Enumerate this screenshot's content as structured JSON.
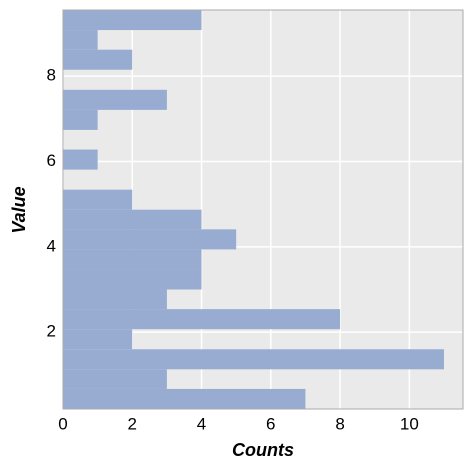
{
  "chart_data": {
    "type": "histogram",
    "orientation": "horizontal",
    "xlabel": "Counts",
    "ylabel": "Value",
    "bins": [
      0.2,
      0.67,
      1.13,
      1.6,
      2.07,
      2.54,
      3.0,
      3.47,
      3.94,
      4.41,
      4.87,
      5.34,
      5.81,
      6.28,
      6.74,
      7.21,
      7.68,
      8.15,
      8.62,
      9.08,
      9.55
    ],
    "values": [
      7,
      3,
      11,
      2,
      8,
      3,
      4,
      4,
      5,
      4,
      2,
      0,
      1,
      0,
      1,
      3,
      0,
      2,
      1,
      4
    ],
    "color": "#97acd0",
    "xlim": [
      0,
      11.55
    ],
    "xticks": [
      0,
      2,
      4,
      6,
      8,
      10
    ],
    "ylim": [
      0.2,
      9.55
    ],
    "yticks": [
      2,
      4,
      6,
      8
    ],
    "grid": true
  }
}
